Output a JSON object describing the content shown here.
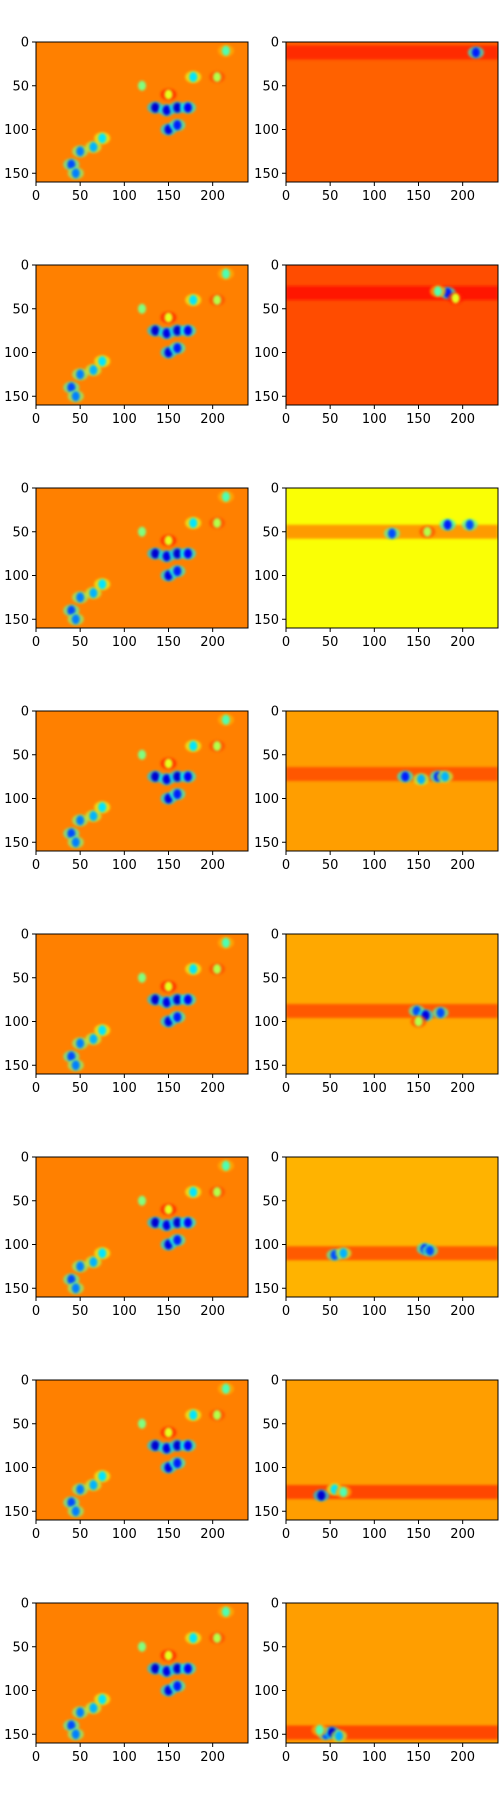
{
  "chart_data": {
    "type": "heatmap",
    "colormap": "jet",
    "grid": false,
    "rows": 8,
    "cols": 2,
    "xlim": [
      0,
      240
    ],
    "ylim": [
      160,
      0
    ],
    "xticks": [
      0,
      50,
      100,
      150,
      200
    ],
    "yticks": [
      0,
      50,
      100,
      150
    ],
    "xtick_labels": [
      "0",
      "50",
      "100",
      "150",
      "200"
    ],
    "ytick_labels": [
      "0",
      "50",
      "100",
      "150"
    ],
    "left_panel": {
      "background_level": 0.75,
      "hotspots": [
        [
          40,
          140,
          0.2
        ],
        [
          50,
          125,
          0.25
        ],
        [
          65,
          120,
          0.3
        ],
        [
          75,
          110,
          0.35
        ],
        [
          45,
          150,
          0.25
        ],
        [
          135,
          75,
          0.08
        ],
        [
          148,
          78,
          0.1
        ],
        [
          160,
          75,
          0.08
        ],
        [
          172,
          75,
          0.12
        ],
        [
          150,
          100,
          0.1
        ],
        [
          160,
          95,
          0.15
        ],
        [
          178,
          40,
          0.35
        ],
        [
          205,
          40,
          0.55
        ],
        [
          120,
          50,
          0.5
        ],
        [
          150,
          60,
          0.6
        ],
        [
          215,
          10,
          0.45
        ]
      ]
    },
    "right_panels": [
      {
        "background_level": 0.78,
        "band_y": 12,
        "band_level": 0.84,
        "hotspots": [
          [
            215,
            12,
            0.15
          ]
        ]
      },
      {
        "background_level": 0.8,
        "band_y": 32,
        "band_level": 0.86,
        "hotspots": [
          [
            183,
            32,
            0.15
          ],
          [
            172,
            30,
            0.45
          ],
          [
            192,
            38,
            0.6
          ]
        ]
      },
      {
        "background_level": 0.62,
        "band_y": 50,
        "band_level": 0.74,
        "hotspots": [
          [
            120,
            52,
            0.2
          ],
          [
            183,
            42,
            0.15
          ],
          [
            208,
            42,
            0.2
          ],
          [
            160,
            50,
            0.55
          ]
        ]
      },
      {
        "background_level": 0.72,
        "band_y": 72,
        "band_level": 0.8,
        "hotspots": [
          [
            135,
            75,
            0.15
          ],
          [
            153,
            78,
            0.3
          ],
          [
            172,
            75,
            0.15
          ],
          [
            180,
            75,
            0.3
          ]
        ]
      },
      {
        "background_level": 0.71,
        "band_y": 88,
        "band_level": 0.8,
        "hotspots": [
          [
            148,
            88,
            0.2
          ],
          [
            158,
            93,
            0.1
          ],
          [
            175,
            90,
            0.2
          ],
          [
            150,
            100,
            0.55
          ]
        ]
      },
      {
        "background_level": 0.7,
        "band_y": 110,
        "band_level": 0.8,
        "hotspots": [
          [
            55,
            112,
            0.2
          ],
          [
            65,
            110,
            0.3
          ],
          [
            157,
            105,
            0.15
          ],
          [
            163,
            107,
            0.2
          ]
        ]
      },
      {
        "background_level": 0.72,
        "band_y": 128,
        "band_level": 0.82,
        "hotspots": [
          [
            40,
            132,
            0.08
          ],
          [
            55,
            125,
            0.35
          ],
          [
            65,
            128,
            0.45
          ]
        ]
      },
      {
        "background_level": 0.72,
        "band_y": 148,
        "band_level": 0.82,
        "hotspots": [
          [
            45,
            150,
            0.2
          ],
          [
            52,
            148,
            0.08
          ],
          [
            60,
            152,
            0.3
          ],
          [
            38,
            145,
            0.45
          ]
        ]
      }
    ]
  }
}
